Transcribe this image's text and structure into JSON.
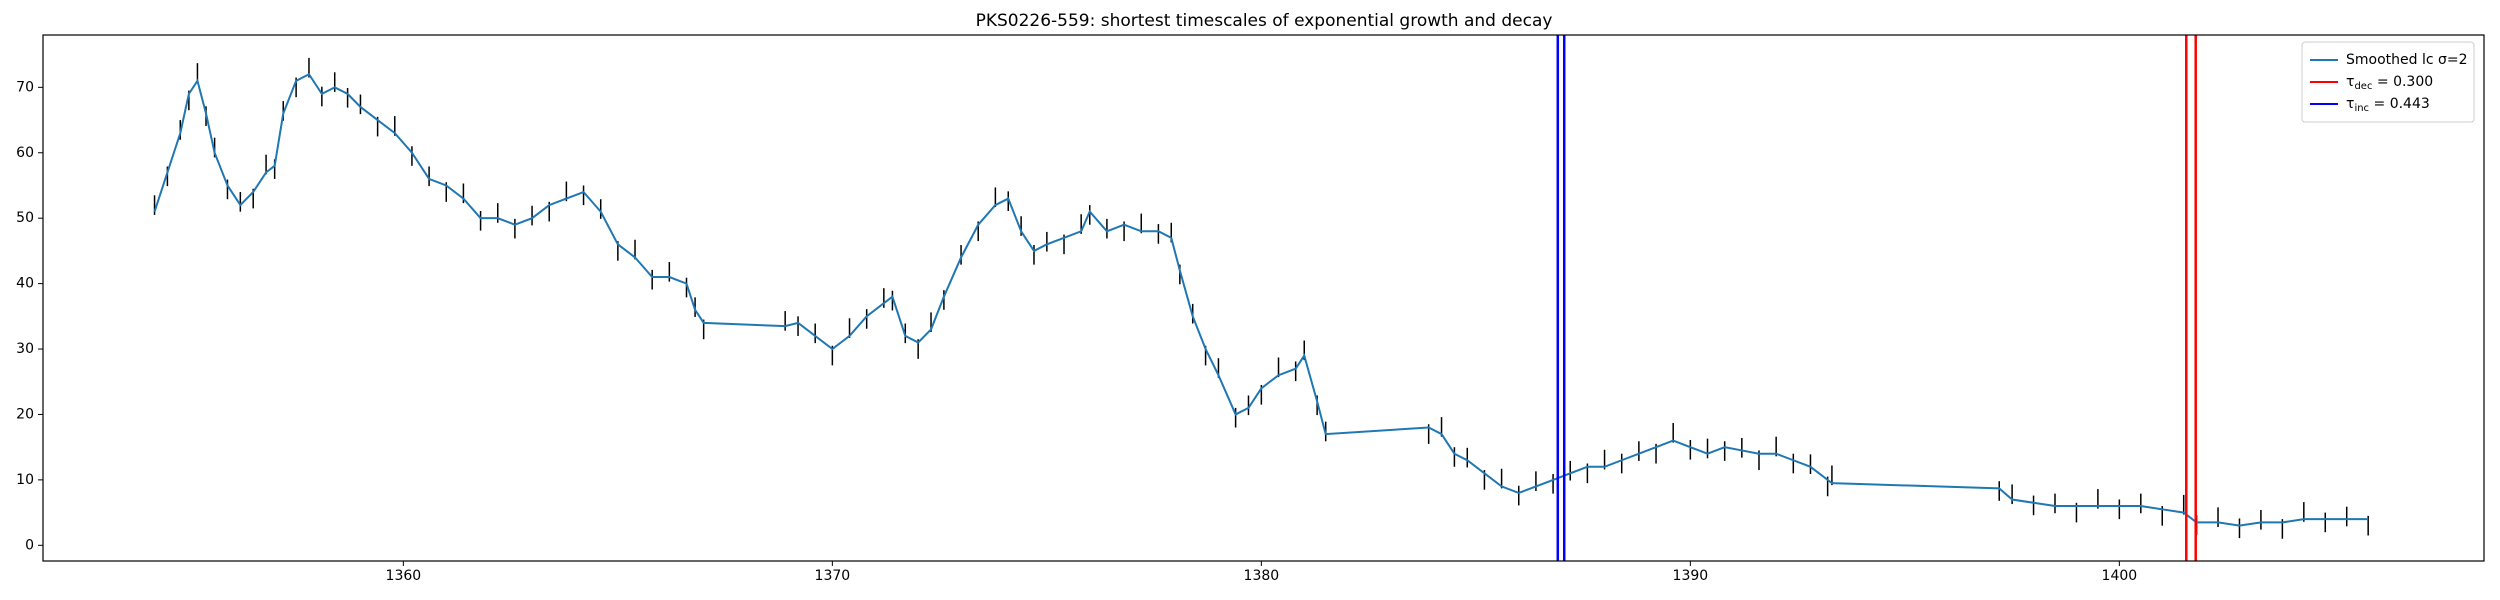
{
  "chart_data": {
    "type": "lightcurve",
    "title": "PKS0226-559: shortest timescales of exponential growth and decay",
    "xlim": [
      1351.6,
      1408.5
    ],
    "ylim": [
      -2.4,
      78
    ],
    "xticks": [
      1360,
      1370,
      1380,
      1390,
      1400
    ],
    "yticks": [
      0,
      10,
      20,
      30,
      40,
      50,
      60,
      70
    ],
    "legend": "upper right",
    "x": [
      1354.2,
      1354.5,
      1354.8,
      1355.0,
      1355.2,
      1355.4,
      1355.6,
      1355.9,
      1356.2,
      1356.5,
      1356.8,
      1357.0,
      1357.2,
      1357.5,
      1357.8,
      1358.1,
      1358.4,
      1358.7,
      1359.0,
      1359.4,
      1359.8,
      1360.2,
      1360.6,
      1361.0,
      1361.4,
      1361.8,
      1362.2,
      1362.6,
      1363.0,
      1363.4,
      1363.8,
      1364.2,
      1364.6,
      1365.0,
      1365.4,
      1365.8,
      1366.2,
      1366.6,
      1366.8,
      1367.0,
      1368.9,
      1369.2,
      1369.6,
      1370.0,
      1370.4,
      1370.8,
      1371.2,
      1371.4,
      1371.7,
      1372.0,
      1372.3,
      1372.6,
      1373.0,
      1373.4,
      1373.8,
      1374.1,
      1374.4,
      1374.7,
      1375.0,
      1375.4,
      1375.8,
      1376.0,
      1376.4,
      1376.8,
      1377.2,
      1377.6,
      1377.9,
      1378.1,
      1378.4,
      1378.7,
      1379.0,
      1379.4,
      1379.7,
      1380.0,
      1380.4,
      1380.8,
      1381.0,
      1381.3,
      1381.5,
      1383.9,
      1384.2,
      1384.5,
      1384.8,
      1385.2,
      1385.6,
      1386.0,
      1386.4,
      1386.8,
      1387.2,
      1387.6,
      1388.0,
      1388.4,
      1388.8,
      1389.2,
      1389.6,
      1390.0,
      1390.4,
      1390.8,
      1391.2,
      1391.6,
      1392.0,
      1392.4,
      1392.8,
      1393.2,
      1393.3,
      1397.2,
      1397.5,
      1398.0,
      1398.5,
      1399.0,
      1399.5,
      1400.0,
      1400.5,
      1401.0,
      1401.5,
      1401.8,
      1402.3,
      1402.8,
      1403.3,
      1403.8,
      1404.3,
      1404.8,
      1405.3,
      1405.8
    ],
    "series": [
      {
        "type": "errorbar",
        "color": "#000000",
        "error": 1.5,
        "values": [
          52,
          56.4,
          63.5,
          68,
          72.2,
          65.6,
          60.8,
          54.4,
          52.5,
          53,
          58.2,
          57.5,
          66.4,
          70,
          73,
          68.6,
          70.8,
          68.4,
          67.4,
          64,
          64.1,
          59.5,
          56.4,
          54,
          53.8,
          49.6,
          50.8,
          48.4,
          50.4,
          51,
          54.1,
          53.5,
          51.4,
          45,
          45.2,
          40.6,
          41.8,
          39.4,
          36.4,
          33,
          34.3,
          33.5,
          32.4,
          29,
          33.2,
          34.6,
          37.8,
          37.4,
          32.4,
          30,
          34.1,
          37.5,
          44.4,
          48,
          53.2,
          52.6,
          48.8,
          44.4,
          46.4,
          46,
          49.1,
          50.5,
          48.4,
          48,
          49.2,
          47.6,
          47.8,
          41.4,
          35.4,
          29,
          27.1,
          19.5,
          21.4,
          23,
          27.2,
          26.6,
          29.8,
          21.4,
          17.4,
          17,
          18.1,
          13.5,
          13.4,
          10,
          10.2,
          7.6,
          9.8,
          9.4,
          11.4,
          11,
          13.1,
          12.5,
          14.4,
          14,
          17.2,
          14.6,
          14.8,
          14.4,
          14.9,
          13,
          15.1,
          12.5,
          12.4,
          9,
          10.7,
          8.3,
          7.8,
          6.1,
          6.4,
          5,
          7.1,
          5.5,
          6.4,
          4.5,
          6.2,
          3.1,
          4.3,
          2.6,
          3.9,
          2.5,
          5.1,
          3.5,
          4.4,
          3
        ]
      },
      {
        "type": "line",
        "name": "Smoothed lc σ=2",
        "color": "#1f77b4",
        "values": [
          51,
          57,
          63,
          69,
          71,
          66,
          60,
          55,
          52,
          54,
          57,
          58,
          66,
          71,
          72,
          69,
          70,
          69,
          67,
          65,
          63,
          60,
          56,
          55,
          53,
          50,
          50,
          49,
          50,
          52,
          53,
          54,
          51,
          46,
          44,
          41,
          41,
          40,
          36,
          34,
          33.5,
          34,
          32,
          30,
          32,
          35,
          37,
          38,
          32,
          31,
          33,
          38,
          44,
          49,
          52,
          53,
          48,
          45,
          46,
          47,
          48,
          51,
          48,
          49,
          48,
          48,
          47,
          42,
          35,
          30,
          26,
          20,
          21,
          24,
          26,
          27,
          29,
          22,
          17,
          18,
          17,
          14,
          13,
          11,
          9,
          8,
          9,
          10,
          11,
          12,
          12,
          13,
          14,
          15,
          16,
          15,
          14,
          15,
          14.5,
          14,
          14,
          13,
          12,
          10,
          9.5,
          8.7,
          7,
          6.5,
          6,
          6,
          6,
          6,
          6,
          5.5,
          5,
          3.5,
          3.5,
          3,
          3.5,
          3.5,
          4,
          4,
          4,
          4
        ]
      },
      {
        "type": "vline",
        "name_parts": [
          "τ",
          "dec",
          " = 0.300"
        ],
        "color": "#ff0000",
        "x": [
          1401.56,
          1401.78
        ]
      },
      {
        "type": "vline",
        "name_parts": [
          "τ",
          "inc",
          " = 0.443"
        ],
        "color": "#0000ff",
        "x": [
          1386.91,
          1387.06
        ]
      }
    ]
  }
}
